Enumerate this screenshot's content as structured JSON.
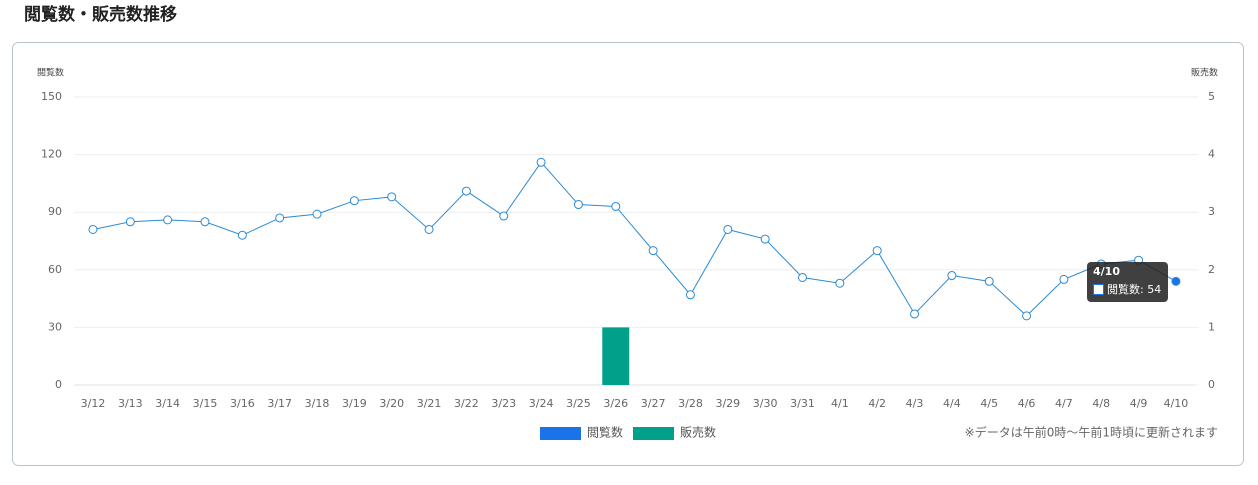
{
  "chart_data": {
    "type": "line",
    "title": "閲覧数・販売数推移",
    "ylabel": "閲覧数",
    "y2label": "販売数",
    "categories": [
      "3/12",
      "3/13",
      "3/14",
      "3/15",
      "3/16",
      "3/17",
      "3/18",
      "3/19",
      "3/20",
      "3/21",
      "3/22",
      "3/23",
      "3/24",
      "3/25",
      "3/26",
      "3/27",
      "3/28",
      "3/29",
      "3/30",
      "3/31",
      "4/1",
      "4/2",
      "4/3",
      "4/4",
      "4/5",
      "4/6",
      "4/7",
      "4/8",
      "4/9",
      "4/10"
    ],
    "series": [
      {
        "name": "閲覧数",
        "type": "line",
        "color": "#1a73e8",
        "line_color": "#2a8ad4",
        "values": [
          81,
          85,
          86,
          85,
          78,
          87,
          89,
          96,
          98,
          81,
          101,
          88,
          116,
          94,
          93,
          70,
          47,
          81,
          76,
          56,
          53,
          70,
          37,
          57,
          54,
          36,
          55,
          63,
          65,
          54
        ]
      },
      {
        "name": "販売数",
        "type": "bar",
        "axis": "y2",
        "color": "#00a08a",
        "values": [
          0,
          0,
          0,
          0,
          0,
          0,
          0,
          0,
          0,
          0,
          0,
          0,
          0,
          0,
          1,
          0,
          0,
          0,
          0,
          0,
          0,
          0,
          0,
          0,
          0,
          0,
          0,
          0,
          0,
          0
        ]
      }
    ],
    "ylim": [
      0,
      150
    ],
    "yticks": [
      0,
      30,
      60,
      90,
      120,
      150
    ],
    "y2lim": [
      0,
      5
    ],
    "y2ticks": [
      0,
      1,
      2,
      3,
      4,
      5
    ],
    "grid": true,
    "legend": "bottom",
    "note": "※データは午前0時〜午前1時頃に更新されます",
    "tooltip": {
      "title": "4/10",
      "label": "閲覧数: 54"
    }
  }
}
